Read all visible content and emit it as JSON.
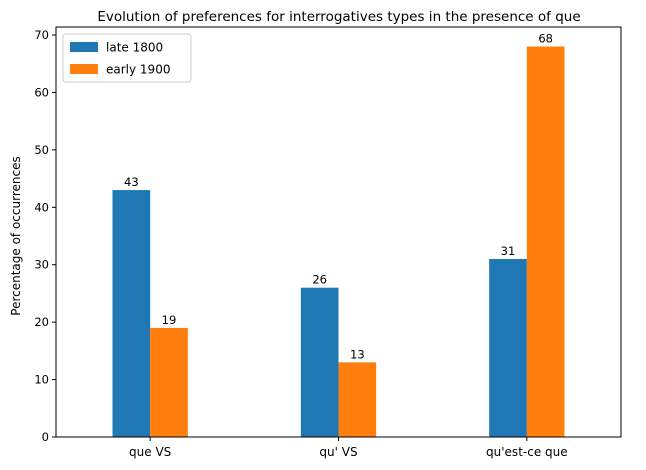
{
  "chart_data": {
    "type": "bar",
    "title": "Evolution of preferences for interrogatives types in the presence of que",
    "xlabel": "",
    "ylabel": "Percentage of occurrences",
    "categories": [
      "que VS",
      "qu' VS",
      "qu'est-ce que"
    ],
    "series": [
      {
        "name": "late 1800",
        "values": [
          43,
          26,
          31
        ],
        "color": "#1f77b4"
      },
      {
        "name": "early 1900",
        "values": [
          19,
          13,
          68
        ],
        "color": "#ff7f0e"
      }
    ],
    "ylim": [
      0,
      71.4
    ],
    "yticks": [
      0,
      10,
      20,
      30,
      40,
      50,
      60,
      70
    ],
    "grid": false,
    "legend": "top-left"
  }
}
